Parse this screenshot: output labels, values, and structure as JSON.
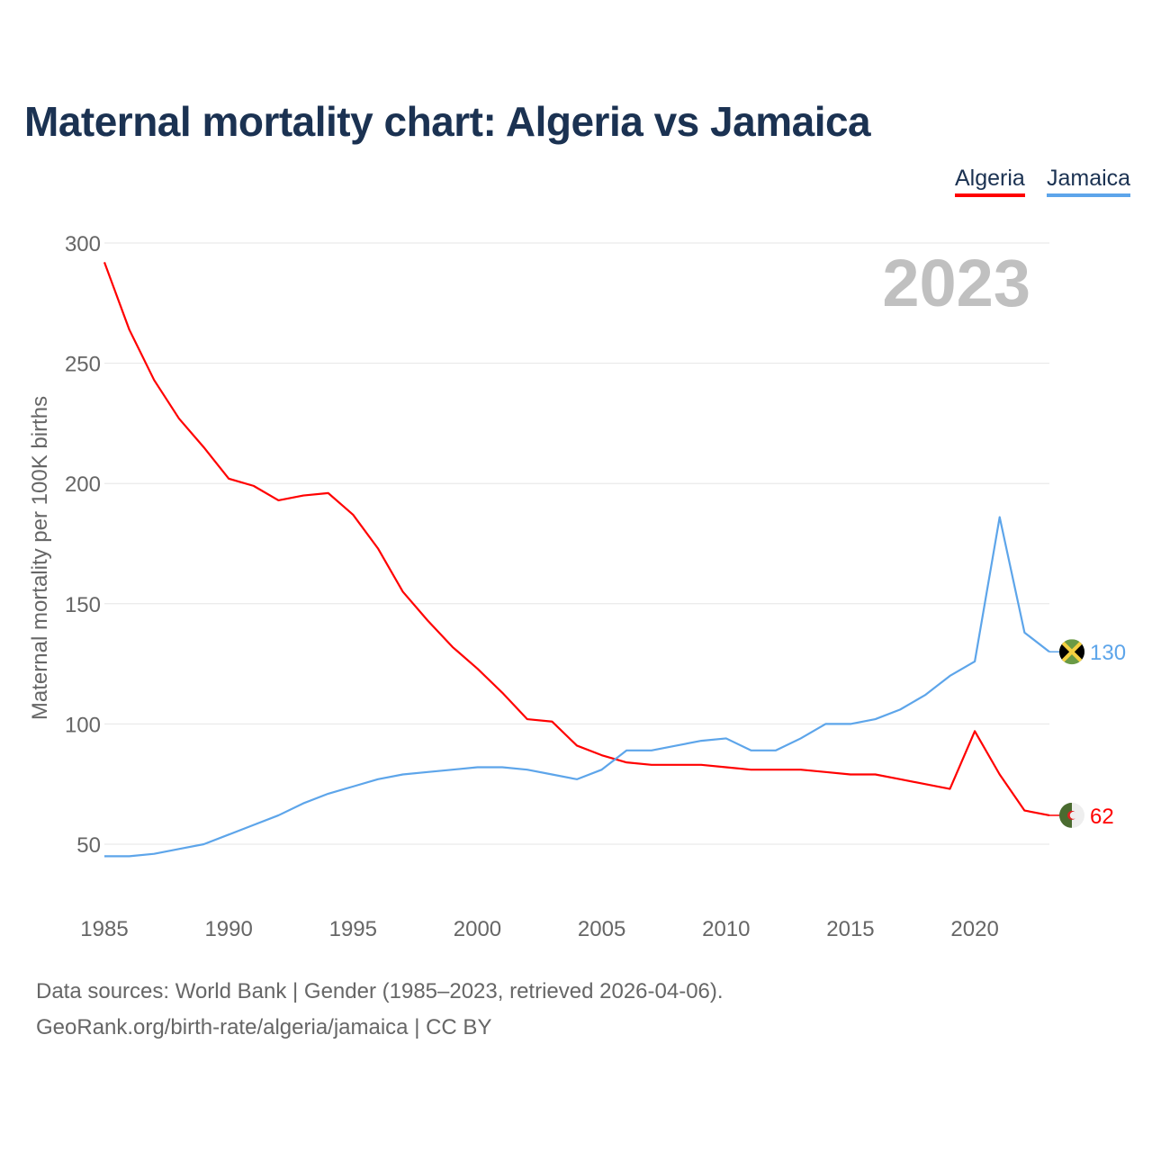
{
  "title": "Maternal mortality chart: Algeria vs Jamaica",
  "footer": {
    "line1": "Data sources: World Bank | Gender (1985–2023, retrieved 2026-04-06).",
    "line2": "GeoRank.org/birth-rate/algeria/jamaica | CC BY"
  },
  "chart_data": {
    "type": "line",
    "title": "Maternal mortality chart: Algeria vs Jamaica",
    "xlabel": "",
    "ylabel": "Maternal mortality per 100K births",
    "year_label": "2023",
    "ylim": [
      25,
      300
    ],
    "xlim": [
      1985,
      2023
    ],
    "yticks": [
      50,
      100,
      150,
      200,
      250,
      300
    ],
    "xticks": [
      1985,
      1990,
      1995,
      2000,
      2005,
      2010,
      2015,
      2020
    ],
    "grid": true,
    "legend": "top-right",
    "x": [
      1985,
      1986,
      1987,
      1988,
      1989,
      1990,
      1991,
      1992,
      1993,
      1994,
      1995,
      1996,
      1997,
      1998,
      1999,
      2000,
      2001,
      2002,
      2003,
      2004,
      2005,
      2006,
      2007,
      2008,
      2009,
      2010,
      2011,
      2012,
      2013,
      2014,
      2015,
      2016,
      2017,
      2018,
      2019,
      2020,
      2021,
      2022,
      2023
    ],
    "series": [
      {
        "name": "Algeria",
        "color": "#ff0000",
        "end_label": "62",
        "flag": "algeria-flag",
        "values": [
          292,
          264,
          243,
          227,
          215,
          202,
          199,
          193,
          195,
          196,
          187,
          173,
          155,
          143,
          132,
          123,
          113,
          102,
          101,
          91,
          87,
          84,
          83,
          83,
          83,
          82,
          81,
          81,
          81,
          80,
          79,
          79,
          77,
          75,
          73,
          97,
          79,
          64,
          62
        ]
      },
      {
        "name": "Jamaica",
        "color": "#5da5ea",
        "end_label": "130",
        "flag": "jamaica-flag",
        "values": [
          45,
          45,
          46,
          48,
          50,
          54,
          58,
          62,
          67,
          71,
          74,
          77,
          79,
          80,
          81,
          82,
          82,
          81,
          79,
          77,
          81,
          89,
          89,
          91,
          93,
          94,
          89,
          89,
          94,
          100,
          100,
          102,
          106,
          112,
          120,
          126,
          186,
          138,
          130
        ]
      }
    ]
  }
}
